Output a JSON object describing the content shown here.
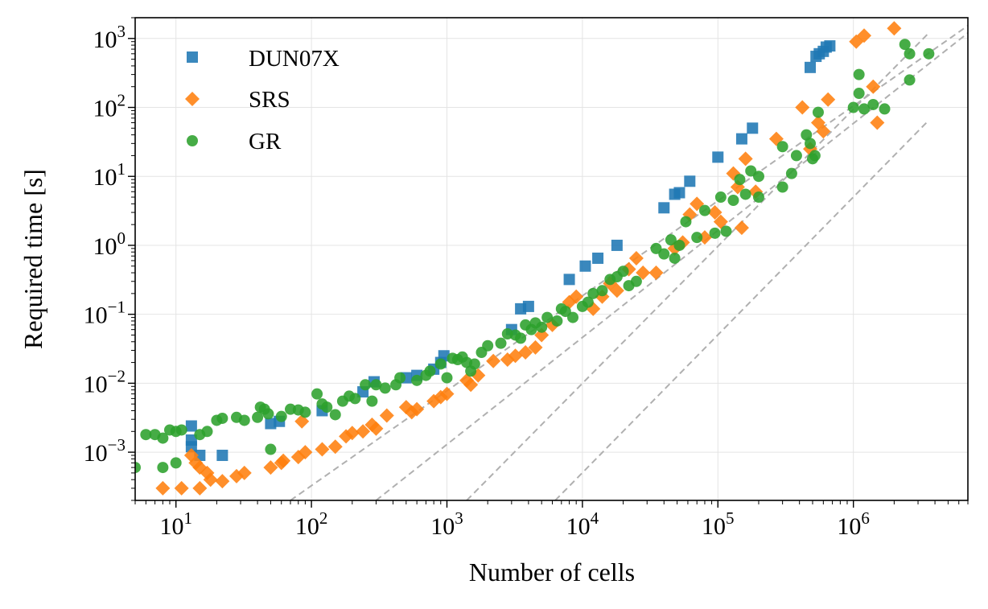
{
  "chart_data": {
    "type": "scatter",
    "title": "",
    "xlabel": "Number of cells",
    "ylabel": "Required time [s]",
    "xscale": "log",
    "yscale": "log",
    "xlim": [
      5,
      7000000
    ],
    "ylim": [
      0.0002,
      2000
    ],
    "grid": true,
    "legend_position": "top-left",
    "x_tick_labels": [
      {
        "value": 10,
        "base": "10",
        "exp": "1"
      },
      {
        "value": 100,
        "base": "10",
        "exp": "2"
      },
      {
        "value": 1000,
        "base": "10",
        "exp": "3"
      },
      {
        "value": 10000,
        "base": "10",
        "exp": "4"
      },
      {
        "value": 100000,
        "base": "10",
        "exp": "5"
      },
      {
        "value": 1000000,
        "base": "10",
        "exp": "6"
      }
    ],
    "y_tick_labels": [
      {
        "value": 0.001,
        "base": "10",
        "exp": "−3"
      },
      {
        "value": 0.01,
        "base": "10",
        "exp": "−2"
      },
      {
        "value": 0.1,
        "base": "10",
        "exp": "−1"
      },
      {
        "value": 1,
        "base": "10",
        "exp": "0"
      },
      {
        "value": 10,
        "base": "10",
        "exp": "1"
      },
      {
        "value": 100,
        "base": "10",
        "exp": "2"
      },
      {
        "value": 1000,
        "base": "10",
        "exp": "3"
      }
    ],
    "reference_lines": [
      {
        "name": "ref-line-1",
        "points": [
          [
            70,
            0.0002
          ],
          [
            8500000,
            2000
          ]
        ]
      },
      {
        "name": "ref-line-2",
        "points": [
          [
            300,
            0.0002
          ],
          [
            7000000,
            1200
          ]
        ]
      },
      {
        "name": "ref-line-3",
        "points": [
          [
            1400,
            0.0002
          ],
          [
            3600000,
            1200
          ]
        ]
      },
      {
        "name": "ref-line-4",
        "points": [
          [
            6300,
            0.0002
          ],
          [
            3600000,
            65
          ]
        ]
      }
    ],
    "series": [
      {
        "name": "DUN07X",
        "marker": "square",
        "color": "#1f77b4",
        "points": [
          [
            13,
            0.0024
          ],
          [
            13,
            0.0015
          ],
          [
            13,
            0.0012
          ],
          [
            15,
            0.0009
          ],
          [
            22,
            0.0009
          ],
          [
            50,
            0.0026
          ],
          [
            58,
            0.0028
          ],
          [
            120,
            0.004
          ],
          [
            240,
            0.0075
          ],
          [
            290,
            0.0105
          ],
          [
            500,
            0.012
          ],
          [
            600,
            0.013
          ],
          [
            800,
            0.016
          ],
          [
            900,
            0.02
          ],
          [
            950,
            0.025
          ],
          [
            3000,
            0.06
          ],
          [
            3500,
            0.12
          ],
          [
            4000,
            0.13
          ],
          [
            8000,
            0.32
          ],
          [
            10500,
            0.5
          ],
          [
            13000,
            0.65
          ],
          [
            18000,
            1.0
          ],
          [
            40000,
            3.5
          ],
          [
            48000,
            5.5
          ],
          [
            52000,
            5.8
          ],
          [
            62000,
            8.5
          ],
          [
            100000,
            19
          ],
          [
            150000,
            35
          ],
          [
            180000,
            50
          ],
          [
            480000,
            380
          ],
          [
            530000,
            550
          ],
          [
            560000,
            600
          ],
          [
            600000,
            650
          ],
          [
            630000,
            750
          ],
          [
            670000,
            780
          ]
        ]
      },
      {
        "name": "SRS",
        "marker": "diamond",
        "color": "#ff7f0e",
        "points": [
          [
            8,
            0.0003
          ],
          [
            11,
            0.0003
          ],
          [
            13,
            0.0009
          ],
          [
            14,
            0.0007
          ],
          [
            15,
            0.0006
          ],
          [
            15,
            0.0003
          ],
          [
            17,
            0.0005
          ],
          [
            18,
            0.0004
          ],
          [
            22,
            0.00038
          ],
          [
            28,
            0.00045
          ],
          [
            32,
            0.0005
          ],
          [
            50,
            0.0006
          ],
          [
            60,
            0.0007
          ],
          [
            62,
            0.00075
          ],
          [
            80,
            0.00085
          ],
          [
            85,
            0.0028
          ],
          [
            90,
            0.001
          ],
          [
            120,
            0.0011
          ],
          [
            150,
            0.0012
          ],
          [
            180,
            0.0017
          ],
          [
            200,
            0.0019
          ],
          [
            240,
            0.002
          ],
          [
            280,
            0.0025
          ],
          [
            300,
            0.0022
          ],
          [
            360,
            0.0034
          ],
          [
            500,
            0.0045
          ],
          [
            550,
            0.0038
          ],
          [
            600,
            0.0042
          ],
          [
            800,
            0.0055
          ],
          [
            900,
            0.0063
          ],
          [
            1000,
            0.007
          ],
          [
            1400,
            0.011
          ],
          [
            1500,
            0.0095
          ],
          [
            1700,
            0.013
          ],
          [
            2200,
            0.021
          ],
          [
            2800,
            0.022
          ],
          [
            3200,
            0.025
          ],
          [
            3800,
            0.028
          ],
          [
            4500,
            0.033
          ],
          [
            5000,
            0.05
          ],
          [
            6000,
            0.07
          ],
          [
            8000,
            0.15
          ],
          [
            9000,
            0.18
          ],
          [
            12000,
            0.12
          ],
          [
            14000,
            0.18
          ],
          [
            16000,
            0.28
          ],
          [
            18000,
            0.22
          ],
          [
            22000,
            0.45
          ],
          [
            25000,
            0.65
          ],
          [
            28000,
            0.4
          ],
          [
            35000,
            0.4
          ],
          [
            48000,
            0.9
          ],
          [
            55000,
            1.1
          ],
          [
            62000,
            2.8
          ],
          [
            70000,
            4.0
          ],
          [
            80000,
            1.3
          ],
          [
            95000,
            3.0
          ],
          [
            105000,
            2.2
          ],
          [
            130000,
            11
          ],
          [
            140000,
            7
          ],
          [
            150000,
            1.8
          ],
          [
            160000,
            18
          ],
          [
            190000,
            6
          ],
          [
            270000,
            35
          ],
          [
            420000,
            100
          ],
          [
            480000,
            25
          ],
          [
            550000,
            60
          ],
          [
            600000,
            45
          ],
          [
            650000,
            130
          ],
          [
            1050000,
            900
          ],
          [
            1200000,
            1100
          ],
          [
            1400000,
            200
          ],
          [
            1500000,
            60
          ],
          [
            2000000,
            1400
          ]
        ]
      },
      {
        "name": "GR",
        "marker": "circle",
        "color": "#2ca02c",
        "points": [
          [
            5,
            0.0006
          ],
          [
            6,
            0.0018
          ],
          [
            7,
            0.0018
          ],
          [
            8,
            0.0016
          ],
          [
            8,
            0.0006
          ],
          [
            9,
            0.0021
          ],
          [
            10,
            0.002
          ],
          [
            10,
            0.0007
          ],
          [
            11,
            0.0021
          ],
          [
            15,
            0.0018
          ],
          [
            17,
            0.002
          ],
          [
            20,
            0.0029
          ],
          [
            22,
            0.0031
          ],
          [
            28,
            0.0032
          ],
          [
            32,
            0.0029
          ],
          [
            40,
            0.0032
          ],
          [
            42,
            0.0045
          ],
          [
            45,
            0.0042
          ],
          [
            48,
            0.0036
          ],
          [
            50,
            0.0011
          ],
          [
            60,
            0.0033
          ],
          [
            70,
            0.0042
          ],
          [
            80,
            0.0041
          ],
          [
            90,
            0.0038
          ],
          [
            110,
            0.007
          ],
          [
            120,
            0.005
          ],
          [
            130,
            0.0045
          ],
          [
            150,
            0.0035
          ],
          [
            170,
            0.0055
          ],
          [
            190,
            0.0065
          ],
          [
            210,
            0.006
          ],
          [
            250,
            0.0095
          ],
          [
            280,
            0.0055
          ],
          [
            300,
            0.0095
          ],
          [
            350,
            0.0085
          ],
          [
            420,
            0.0095
          ],
          [
            450,
            0.012
          ],
          [
            600,
            0.011
          ],
          [
            700,
            0.013
          ],
          [
            750,
            0.015
          ],
          [
            900,
            0.019
          ],
          [
            1000,
            0.012
          ],
          [
            1100,
            0.023
          ],
          [
            1200,
            0.022
          ],
          [
            1300,
            0.024
          ],
          [
            1400,
            0.02
          ],
          [
            1500,
            0.015
          ],
          [
            1600,
            0.019
          ],
          [
            1800,
            0.028
          ],
          [
            2000,
            0.035
          ],
          [
            2500,
            0.038
          ],
          [
            2800,
            0.052
          ],
          [
            3200,
            0.05
          ],
          [
            3500,
            0.045
          ],
          [
            3800,
            0.07
          ],
          [
            4200,
            0.06
          ],
          [
            4500,
            0.075
          ],
          [
            5000,
            0.065
          ],
          [
            5500,
            0.09
          ],
          [
            6500,
            0.08
          ],
          [
            7000,
            0.12
          ],
          [
            7500,
            0.11
          ],
          [
            8500,
            0.09
          ],
          [
            10000,
            0.13
          ],
          [
            11000,
            0.15
          ],
          [
            12000,
            0.2
          ],
          [
            14000,
            0.22
          ],
          [
            16000,
            0.32
          ],
          [
            18000,
            0.35
          ],
          [
            20000,
            0.42
          ],
          [
            22000,
            0.26
          ],
          [
            25000,
            0.3
          ],
          [
            35000,
            0.9
          ],
          [
            40000,
            0.75
          ],
          [
            45000,
            1.2
          ],
          [
            48000,
            0.65
          ],
          [
            52000,
            1.0
          ],
          [
            58000,
            2.2
          ],
          [
            70000,
            1.3
          ],
          [
            80000,
            3.2
          ],
          [
            95000,
            1.5
          ],
          [
            105000,
            5.0
          ],
          [
            115000,
            1.6
          ],
          [
            130000,
            4.5
          ],
          [
            145000,
            9.0
          ],
          [
            160000,
            5.5
          ],
          [
            175000,
            12
          ],
          [
            200000,
            10
          ],
          [
            200000,
            5.0
          ],
          [
            300000,
            27
          ],
          [
            300000,
            7.0
          ],
          [
            350000,
            11
          ],
          [
            380000,
            20
          ],
          [
            450000,
            40
          ],
          [
            480000,
            30
          ],
          [
            500000,
            18
          ],
          [
            520000,
            20
          ],
          [
            550000,
            85
          ],
          [
            1000000,
            100
          ],
          [
            1100000,
            160
          ],
          [
            1100000,
            300
          ],
          [
            1200000,
            95
          ],
          [
            1400000,
            110
          ],
          [
            1700000,
            95
          ],
          [
            2400000,
            820
          ],
          [
            2600000,
            600
          ],
          [
            2600000,
            250
          ],
          [
            3600000,
            600
          ]
        ]
      }
    ]
  }
}
